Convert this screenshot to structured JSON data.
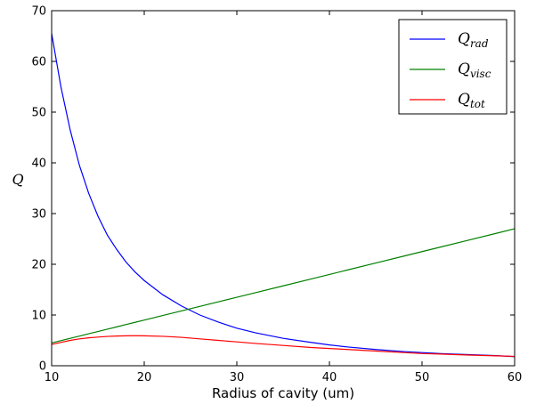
{
  "chart_data": {
    "type": "line",
    "title": "",
    "xlabel": "Radius of cavity (um)",
    "ylabel": "Q",
    "xlim": [
      10,
      60
    ],
    "ylim": [
      0,
      70
    ],
    "xticks": [
      "10",
      "20",
      "30",
      "40",
      "50",
      "60"
    ],
    "yticks": [
      "0",
      "10",
      "20",
      "30",
      "40",
      "50",
      "60",
      "70"
    ],
    "grid": false,
    "legend_position": "top-right",
    "x": [
      10,
      11,
      12,
      13,
      14,
      15,
      16,
      17,
      18,
      19,
      20,
      22,
      24,
      26,
      28,
      30,
      32,
      35,
      38,
      40,
      42,
      45,
      48,
      50,
      52,
      55,
      58,
      60
    ],
    "series": [
      {
        "name": "Q",
        "subscript": "rad",
        "color": "#0000ff",
        "values": [
          65.5,
          55.0,
          46.5,
          39.5,
          34.0,
          29.5,
          25.8,
          23.0,
          20.5,
          18.5,
          16.8,
          14.0,
          11.8,
          10.0,
          8.6,
          7.4,
          6.5,
          5.4,
          4.6,
          4.1,
          3.7,
          3.2,
          2.8,
          2.6,
          2.4,
          2.2,
          2.0,
          1.8
        ]
      },
      {
        "name": "Q",
        "subscript": "visc",
        "color": "#008000",
        "values": [
          4.5,
          4.95,
          5.4,
          5.85,
          6.3,
          6.75,
          7.2,
          7.65,
          8.1,
          8.55,
          9.0,
          9.9,
          10.8,
          11.7,
          12.6,
          13.5,
          14.4,
          15.75,
          17.1,
          18.0,
          18.9,
          20.25,
          21.6,
          22.5,
          23.4,
          24.75,
          26.1,
          27.0
        ]
      },
      {
        "name": "Q",
        "subscript": "tot",
        "color": "#ff0000",
        "values": [
          4.2,
          4.6,
          5.0,
          5.3,
          5.5,
          5.65,
          5.78,
          5.85,
          5.9,
          5.92,
          5.9,
          5.8,
          5.6,
          5.3,
          5.0,
          4.7,
          4.4,
          4.0,
          3.6,
          3.4,
          3.2,
          2.9,
          2.6,
          2.4,
          2.3,
          2.1,
          1.95,
          1.85
        ]
      }
    ]
  }
}
